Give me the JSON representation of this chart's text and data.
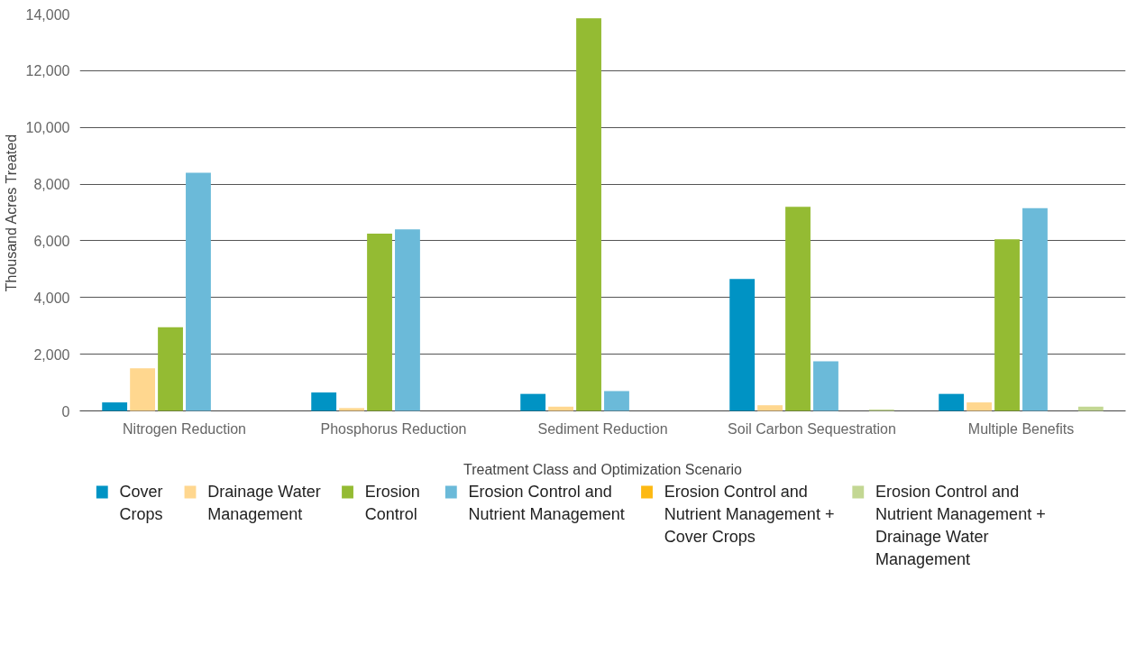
{
  "chart_data": {
    "type": "bar",
    "xlabel": "Treatment Class and Optimization Scenario",
    "ylabel": "Thousand Acres Treated",
    "categories": [
      "Nitrogen Reduction",
      "Phosphorus Reduction",
      "Sediment Reduction",
      "Soil Carbon Sequestration",
      "Multiple Benefits"
    ],
    "series": [
      {
        "name": "Cover Crops",
        "color": "#0093c4",
        "values": [
          300,
          650,
          600,
          4650,
          600
        ]
      },
      {
        "name": "Drainage Water Management",
        "color": "#ffd78f",
        "values": [
          1500,
          100,
          150,
          200,
          300
        ]
      },
      {
        "name": "Erosion Control",
        "color": "#94bb33",
        "values": [
          2950,
          6250,
          13850,
          7200,
          6050
        ]
      },
      {
        "name": "Erosion Control and Nutrient Management",
        "color": "#6bbad9",
        "values": [
          8400,
          6400,
          700,
          1750,
          7150
        ]
      },
      {
        "name": "Erosion Control and Nutrient Management + Cover Crops",
        "color": "#fdb913",
        "values": [
          0,
          0,
          0,
          0,
          0
        ]
      },
      {
        "name": "Erosion Control and Nutrient Management + Drainage Water Management",
        "color": "#c3d793",
        "values": [
          0,
          0,
          0,
          50,
          150
        ]
      }
    ],
    "ylim": [
      0,
      14000
    ],
    "yticks": [
      {
        "value": 0,
        "label": "0"
      },
      {
        "value": 2000,
        "label": "2,000"
      },
      {
        "value": 4000,
        "label": "4,000"
      },
      {
        "value": 6000,
        "label": "6,000"
      },
      {
        "value": 8000,
        "label": "8,000"
      },
      {
        "value": 10000,
        "label": "10,000"
      },
      {
        "value": 12000,
        "label": "12,000"
      },
      {
        "value": 14000,
        "label": "14,000"
      }
    ],
    "grid": "y",
    "legend": "bottom"
  }
}
